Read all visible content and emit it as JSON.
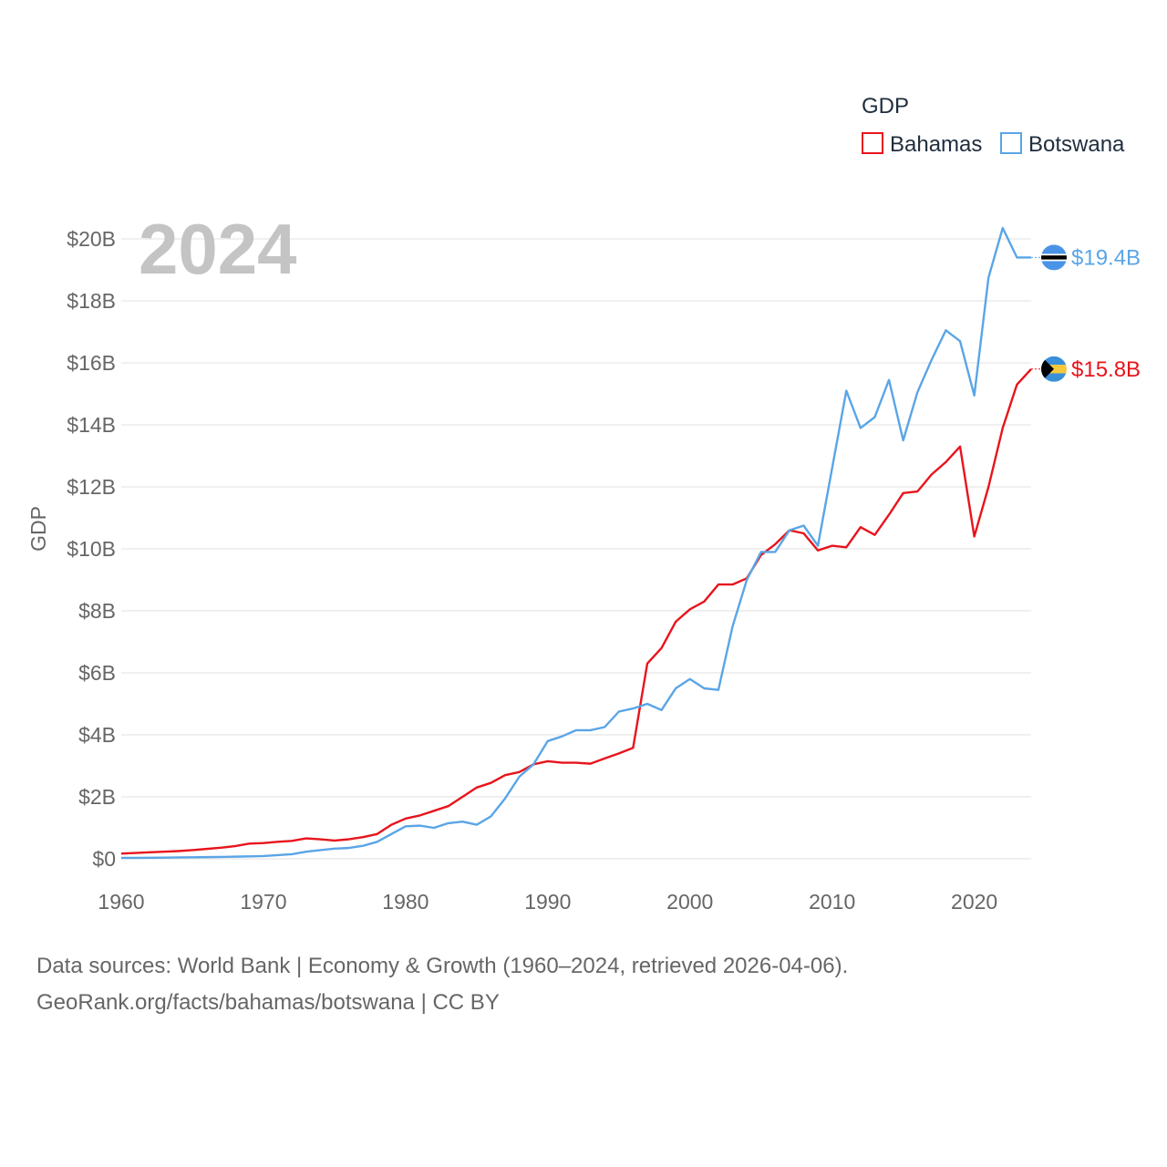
{
  "chart_data": {
    "type": "line",
    "title": "",
    "ylabel": "GDP",
    "xlabel": "",
    "year_label": "2024",
    "legend_title": "GDP",
    "legend_position": "top-right",
    "xlim": [
      1960,
      2024
    ],
    "ylim": [
      0,
      20
    ],
    "x_ticks": [
      1960,
      1970,
      1980,
      1990,
      2000,
      2010,
      2020
    ],
    "y_ticks": [
      0,
      2,
      4,
      6,
      8,
      10,
      12,
      14,
      16,
      18,
      20
    ],
    "y_tick_labels": [
      "$0",
      "$2B",
      "$4B",
      "$6B",
      "$8B",
      "$10B",
      "$12B",
      "$14B",
      "$16B",
      "$18B",
      "$20B"
    ],
    "x": [
      1960,
      1961,
      1962,
      1963,
      1964,
      1965,
      1966,
      1967,
      1968,
      1969,
      1970,
      1971,
      1972,
      1973,
      1974,
      1975,
      1976,
      1977,
      1978,
      1979,
      1980,
      1981,
      1982,
      1983,
      1984,
      1985,
      1986,
      1987,
      1988,
      1989,
      1990,
      1991,
      1992,
      1993,
      1994,
      1995,
      1996,
      1997,
      1998,
      1999,
      2000,
      2001,
      2002,
      2003,
      2004,
      2005,
      2006,
      2007,
      2008,
      2009,
      2010,
      2011,
      2012,
      2013,
      2014,
      2015,
      2016,
      2017,
      2018,
      2019,
      2020,
      2021,
      2022,
      2023,
      2024
    ],
    "series": [
      {
        "name": "Bahamas",
        "color": "#e8141c",
        "end_label": "$15.8B",
        "flag": "bahamas-flag-icon",
        "values": [
          0.17,
          0.19,
          0.21,
          0.23,
          0.25,
          0.28,
          0.32,
          0.36,
          0.41,
          0.49,
          0.51,
          0.55,
          0.58,
          0.66,
          0.63,
          0.59,
          0.63,
          0.7,
          0.8,
          1.1,
          1.3,
          1.4,
          1.55,
          1.7,
          2.0,
          2.3,
          2.45,
          2.7,
          2.8,
          3.05,
          3.15,
          3.1,
          3.1,
          3.07,
          3.24,
          3.4,
          3.58,
          6.3,
          6.8,
          7.65,
          8.05,
          8.3,
          8.85,
          8.85,
          9.05,
          9.8,
          10.15,
          10.6,
          10.5,
          9.95,
          10.1,
          10.05,
          10.7,
          10.45,
          11.1,
          11.8,
          11.85,
          12.4,
          12.8,
          13.3,
          10.4,
          12.0,
          13.9,
          15.3,
          15.8
        ]
      },
      {
        "name": "Botswana",
        "color": "#5aa5e6",
        "end_label": "$19.4B",
        "flag": "botswana-flag-icon",
        "values": [
          0.03,
          0.03,
          0.035,
          0.04,
          0.045,
          0.05,
          0.055,
          0.06,
          0.07,
          0.08,
          0.09,
          0.12,
          0.15,
          0.23,
          0.28,
          0.33,
          0.35,
          0.42,
          0.55,
          0.8,
          1.05,
          1.07,
          1.0,
          1.15,
          1.2,
          1.1,
          1.37,
          1.95,
          2.65,
          3.05,
          3.8,
          3.95,
          4.15,
          4.15,
          4.25,
          4.75,
          4.85,
          5.0,
          4.8,
          5.5,
          5.8,
          5.5,
          5.45,
          7.5,
          9.0,
          9.9,
          9.9,
          10.6,
          10.75,
          10.1,
          12.6,
          15.1,
          13.9,
          14.25,
          15.45,
          13.5,
          15.05,
          16.1,
          17.05,
          16.7,
          14.95,
          18.75,
          20.35,
          19.4,
          19.4
        ]
      }
    ]
  },
  "source": {
    "line1": "Data sources: World Bank | Economy & Growth (1960–2024, retrieved 2026-04-06).",
    "line2": "GeoRank.org/facts/bahamas/botswana | CC BY"
  }
}
